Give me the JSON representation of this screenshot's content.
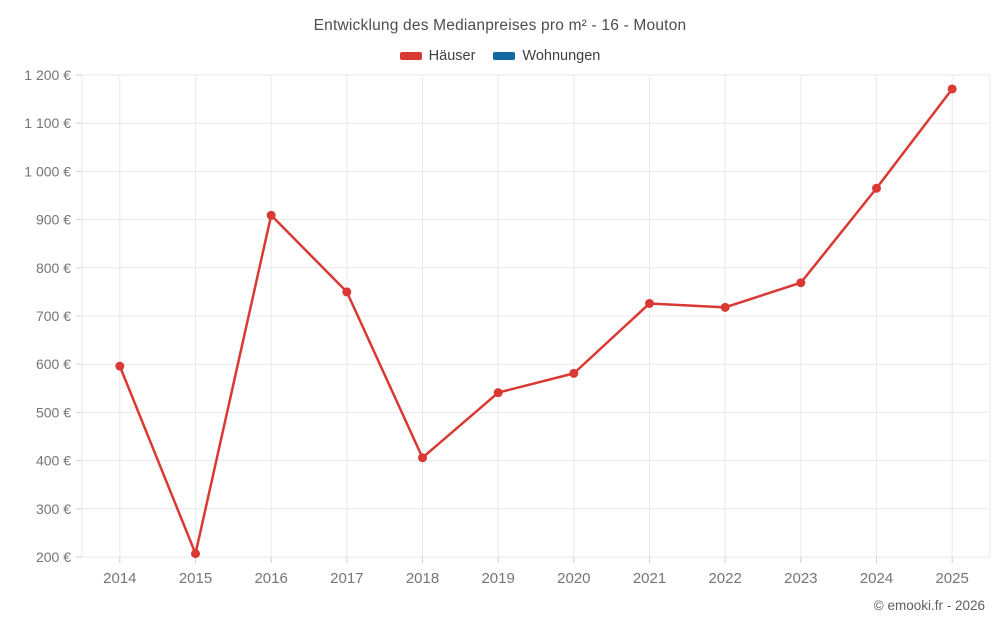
{
  "title": "Entwicklung des Medianpreises pro m² - 16 - Mouton",
  "copyright": "© emooki.fr - 2026",
  "chart_data": {
    "type": "line",
    "title": "Entwicklung des Medianpreises pro m² - 16 - Mouton",
    "categories": [
      "2014",
      "2015",
      "2016",
      "2017",
      "2018",
      "2019",
      "2020",
      "2021",
      "2022",
      "2023",
      "2024",
      "2025"
    ],
    "series": [
      {
        "name": "Häuser",
        "color": "#da3832",
        "values": [
          596,
          207,
          909,
          750,
          406,
          541,
          581,
          726,
          718,
          769,
          965,
          1171
        ]
      },
      {
        "name": "Wohnungen",
        "color": "#1269a2",
        "values": []
      }
    ],
    "xlabel": "",
    "ylabel": "",
    "ylim": [
      200,
      1200
    ],
    "ytick_step": 100,
    "yticklabels": [
      "200 €",
      "300 €",
      "400 €",
      "500 €",
      "600 €",
      "700 €",
      "800 €",
      "900 €",
      "1 000 €",
      "1 100 €",
      "1 200 €"
    ],
    "grid": true,
    "legend_position": "top"
  },
  "colors": {
    "grid": "#e9e9e9",
    "tick": "#cfcfcf",
    "tick_text": "#757575"
  }
}
